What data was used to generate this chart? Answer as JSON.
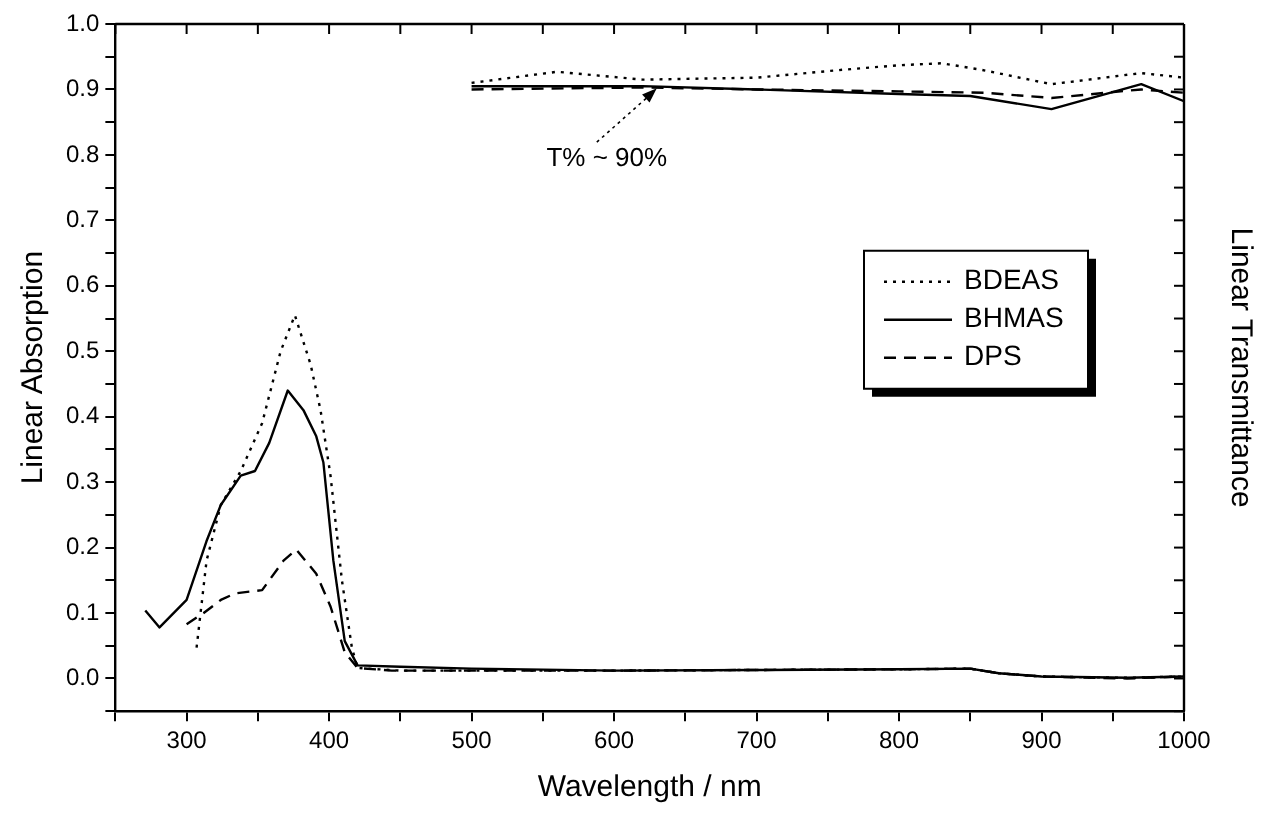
{
  "chart_data": {
    "type": "line",
    "xlabel": "Wavelength / nm",
    "ylabel": "Linear Absorption",
    "y2label": "Linear Transmittance",
    "xlim": [
      250,
      1000
    ],
    "xticks": [
      {
        "value": 250,
        "label": null
      },
      300,
      {
        "value": 350,
        "label": null
      },
      400,
      {
        "value": 450,
        "label": null
      },
      500,
      {
        "value": 550,
        "label": null
      },
      600,
      {
        "value": 650,
        "label": null
      },
      700,
      {
        "value": 750,
        "label": null
      },
      800,
      {
        "value": 850,
        "label": null
      },
      900,
      {
        "value": 950,
        "label": null
      },
      1000
    ],
    "ylim": [
      -0.05,
      1.0
    ],
    "yticks": [
      {
        "value": -0.05,
        "label": null
      },
      {
        "value": 0,
        "label": "0.0"
      },
      {
        "value": 0.05,
        "label": null
      },
      0.1,
      {
        "value": 0.15,
        "label": null
      },
      0.2,
      {
        "value": 0.25,
        "label": null
      },
      0.3,
      {
        "value": 0.35,
        "label": null
      },
      0.4,
      {
        "value": 0.45,
        "label": null
      },
      0.5,
      {
        "value": 0.55,
        "label": null
      },
      0.6,
      {
        "value": 0.65,
        "label": null
      },
      0.7,
      {
        "value": 0.75,
        "label": null
      },
      0.8,
      {
        "value": 0.85,
        "label": null
      },
      0.9,
      {
        "value": 0.95,
        "label": null
      },
      {
        "value": 1,
        "label": "1.0"
      }
    ],
    "grid": false,
    "legend": "right",
    "marker": "none",
    "annotations": [
      {
        "text": "T% ~ 90%",
        "x": 630,
        "y": 0.905
      }
    ],
    "series": [
      {
        "name": "BDEAS",
        "color": "#000000",
        "line_style": "dotted",
        "x": [
          307,
          314,
          324,
          338,
          353,
          366,
          376,
          387,
          394,
          401,
          409,
          416,
          420,
          450,
          500,
          600,
          700,
          800,
          850,
          870,
          900,
          960,
          1000
        ],
        "values": [
          0.047,
          0.18,
          0.265,
          0.317,
          0.39,
          0.5,
          0.555,
          0.48,
          0.41,
          0.31,
          0.15,
          0.047,
          0.016,
          0.012,
          0.012,
          0.012,
          0.013,
          0.014,
          0.015,
          0.008,
          0.003,
          0.001,
          0.003
        ]
      },
      {
        "name": "BHMAS",
        "color": "#000000",
        "line_style": "solid",
        "x": [
          271,
          281,
          300,
          314,
          324,
          338,
          348,
          358,
          371,
          382,
          391,
          396,
          403,
          411,
          420,
          450,
          500,
          600,
          700,
          800,
          850,
          870,
          900,
          960,
          1000
        ],
        "values": [
          0.104,
          0.078,
          0.12,
          0.21,
          0.265,
          0.31,
          0.317,
          0.36,
          0.44,
          0.41,
          0.37,
          0.33,
          0.18,
          0.057,
          0.02,
          0.018,
          0.015,
          0.012,
          0.013,
          0.014,
          0.015,
          0.008,
          0.003,
          0.001,
          0.003
        ]
      },
      {
        "name": "DPS",
        "color": "#000000",
        "line_style": "dashed",
        "x": [
          300,
          312,
          324,
          334,
          353,
          368,
          377,
          391,
          401,
          411,
          420,
          444,
          500,
          600,
          700,
          800,
          850,
          870,
          900,
          960,
          1000
        ],
        "values": [
          0.083,
          0.1,
          0.12,
          0.13,
          0.135,
          0.18,
          0.197,
          0.16,
          0.11,
          0.04,
          0.016,
          0.012,
          0.012,
          0.012,
          0.013,
          0.014,
          0.015,
          0.008,
          0.003,
          0.0,
          0.003
        ]
      },
      {
        "color": "#000000",
        "line_style": "dotted",
        "x": [
          500,
          560,
          620,
          700,
          760,
          800,
          830,
          858,
          907,
          970,
          1000
        ],
        "values": [
          0.91,
          0.927,
          0.915,
          0.918,
          0.93,
          0.937,
          0.94,
          0.93,
          0.908,
          0.925,
          0.918
        ]
      },
      {
        "color": "#000000",
        "line_style": "solid",
        "x": [
          500,
          620,
          700,
          800,
          850,
          907,
          970,
          1000
        ],
        "values": [
          0.905,
          0.905,
          0.9,
          0.893,
          0.89,
          0.87,
          0.908,
          0.882
        ]
      },
      {
        "color": "#000000",
        "line_style": "dashed",
        "x": [
          500,
          620,
          700,
          800,
          860,
          907,
          970,
          1000
        ],
        "values": [
          0.9,
          0.903,
          0.9,
          0.897,
          0.895,
          0.887,
          0.9,
          0.895
        ]
      }
    ]
  }
}
